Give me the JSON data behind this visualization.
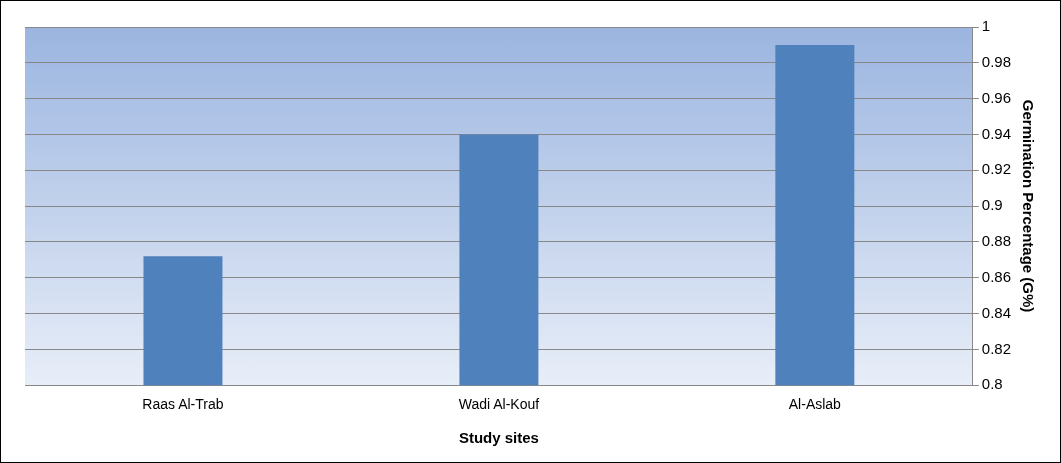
{
  "chart_data": {
    "type": "bar",
    "xlabel": "Study sites",
    "ylabel": "Germination Percentage (G%)",
    "categories": [
      "Raas Al-Trab",
      "Wadi Al-Kouf",
      "Al-Aslab"
    ],
    "values": [
      0.872,
      0.94,
      0.99
    ],
    "color": "#4f81bd",
    "ylim": [
      0.8,
      1
    ],
    "yticks": [
      0.8,
      0.82,
      0.84,
      0.86,
      0.88,
      0.9,
      0.92,
      0.94,
      0.96,
      0.98,
      1
    ],
    "grid": "y",
    "legend": false
  }
}
